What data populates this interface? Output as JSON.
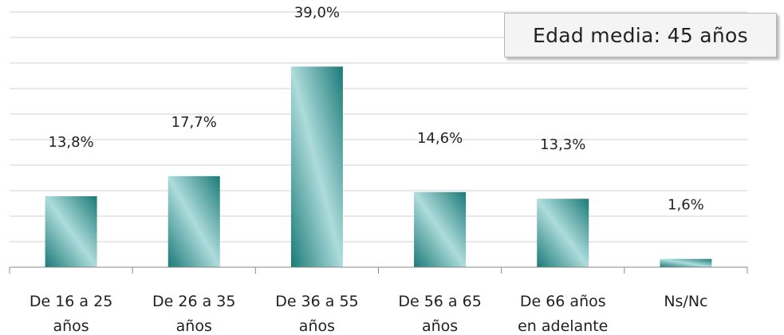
{
  "chart_data": {
    "type": "bar",
    "title": "",
    "xlabel": "",
    "ylabel": "",
    "ylim": [
      0,
      40
    ],
    "grid": true,
    "categories": [
      [
        "De 16 a 25",
        "años"
      ],
      [
        "De 26 a 35",
        "años"
      ],
      [
        "De 36 a 55",
        "años"
      ],
      [
        "De 56 a 65",
        "años"
      ],
      [
        "De 66 años",
        "en adelante"
      ],
      [
        "Ns/Nc"
      ]
    ],
    "values": [
      13.8,
      17.7,
      39.0,
      14.6,
      13.3,
      1.6
    ],
    "data_labels": [
      "13,8%",
      "17,7%",
      "39,0%",
      "14,6%",
      "13,3%",
      "1,6%"
    ],
    "colors": {
      "bar_dark": "#1a7a78",
      "bar_light": "#aedcdc",
      "grid": "#d0d0d0",
      "axis": "#888888"
    }
  },
  "callout": {
    "text": "Edad media: 45 años"
  }
}
